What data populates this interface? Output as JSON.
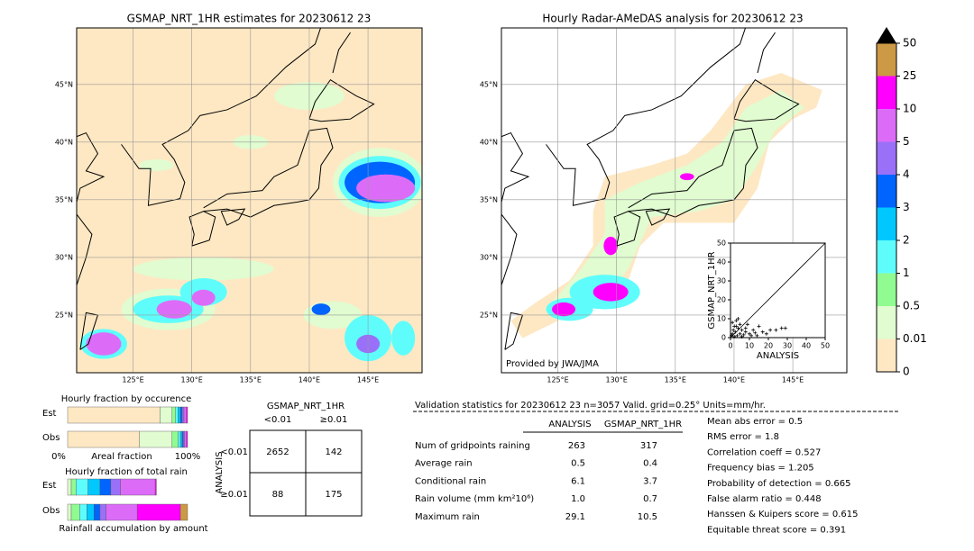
{
  "left_map": {
    "title": "GSMAP_NRT_1HR estimates for 20230612 23",
    "lat_ticks": [
      {
        "value": 45,
        "label": "45°N"
      },
      {
        "value": 40,
        "label": "40°N"
      },
      {
        "value": 35,
        "label": "35°N"
      },
      {
        "value": 30,
        "label": "30°N"
      },
      {
        "value": 25,
        "label": "25°N"
      }
    ],
    "lon_ticks": [
      {
        "value": 125,
        "label": "125°E"
      },
      {
        "value": 130,
        "label": "130°E"
      },
      {
        "value": 135,
        "label": "135°E"
      },
      {
        "value": 140,
        "label": "140°E"
      },
      {
        "value": 145,
        "label": "145°E"
      }
    ]
  },
  "right_map": {
    "title": "Hourly Radar-AMeDAS analysis for 20230612 23",
    "credit": "Provided by JWA/JMA",
    "lat_ticks": [
      {
        "value": 45,
        "label": "45°N"
      },
      {
        "value": 40,
        "label": "40°N"
      },
      {
        "value": 35,
        "label": "35°N"
      },
      {
        "value": 30,
        "label": "30°N"
      },
      {
        "value": 25,
        "label": "25°N"
      }
    ],
    "lon_ticks": [
      {
        "value": 125,
        "label": "125°E"
      },
      {
        "value": 130,
        "label": "130°E"
      },
      {
        "value": 135,
        "label": "135°E"
      },
      {
        "value": 140,
        "label": "140°E"
      },
      {
        "value": 145,
        "label": "145°E"
      }
    ]
  },
  "colorbar": {
    "ticks": [
      "0",
      "0.01",
      "0.5",
      "1",
      "2",
      "3",
      "4",
      "5",
      "10",
      "25",
      "50"
    ],
    "colors": [
      "#fee8c3",
      "#e0fcd0",
      "#90fb90",
      "#5efdfc",
      "#00c8fe",
      "#0064ff",
      "#9a70f8",
      "#dc6cf8",
      "#ff00ff",
      "#cc9944"
    ],
    "extend_color": "#000000"
  },
  "chart_data": [
    {
      "type": "scatter",
      "xlabel": "ANALYSIS",
      "ylabel": "GSMAP_NRT_1HR",
      "xlim": [
        0,
        50
      ],
      "ylim": [
        0,
        50
      ],
      "xticks": [
        0,
        10,
        20,
        30,
        40,
        50
      ],
      "yticks": [
        0,
        10,
        20,
        30,
        40,
        50
      ],
      "x": [
        0.5,
        1,
        1.5,
        2,
        2.5,
        3,
        3.5,
        4,
        5,
        6,
        7,
        8,
        9,
        10,
        11,
        12,
        13,
        14,
        15,
        17,
        19,
        21,
        24,
        27,
        29,
        1,
        2,
        3,
        5,
        6,
        8,
        4
      ],
      "y": [
        1,
        2,
        4,
        0.5,
        3,
        6,
        1,
        5,
        2,
        4,
        1.5,
        3,
        7,
        2,
        1,
        4,
        2.5,
        1,
        6,
        3,
        2,
        4,
        4,
        5,
        5,
        8,
        6,
        9,
        7,
        0.5,
        5,
        10
      ]
    },
    {
      "type": "stacked_bar",
      "title": "Hourly fraction by occurence",
      "categories": [
        "Est",
        "Obs"
      ],
      "xlabels": [
        "0%",
        "Areal fraction",
        "100%"
      ],
      "xlim": [
        0,
        100
      ],
      "series": [
        {
          "color": "#fee8c3",
          "values": [
            77,
            60
          ]
        },
        {
          "color": "#e0fcd0",
          "values": [
            10,
            27
          ]
        },
        {
          "color": "#90fb90",
          "values": [
            3,
            5
          ]
        },
        {
          "color": "#5efdfc",
          "values": [
            2,
            2
          ]
        },
        {
          "color": "#00c8fe",
          "values": [
            2,
            1.5
          ]
        },
        {
          "color": "#0064ff",
          "values": [
            1.5,
            1
          ]
        },
        {
          "color": "#9a70f8",
          "values": [
            1.5,
            1
          ]
        },
        {
          "color": "#dc6cf8",
          "values": [
            2,
            1.5
          ]
        },
        {
          "color": "#ff00ff",
          "values": [
            1,
            1
          ]
        }
      ]
    },
    {
      "type": "stacked_bar",
      "title": "Hourly fraction of total rain",
      "categories": [
        "Est",
        "Obs"
      ],
      "xlabels": [
        "Rainfall accumulation by amount"
      ],
      "xlim": [
        0,
        100
      ],
      "series": [
        {
          "color": "#e0fcd0",
          "values": [
            3,
            3
          ]
        },
        {
          "color": "#90fb90",
          "values": [
            4,
            7
          ]
        },
        {
          "color": "#5efdfc",
          "values": [
            10,
            6
          ]
        },
        {
          "color": "#00c8fe",
          "values": [
            10,
            6
          ]
        },
        {
          "color": "#0064ff",
          "values": [
            9,
            5
          ]
        },
        {
          "color": "#9a70f8",
          "values": [
            8,
            5
          ]
        },
        {
          "color": "#dc6cf8",
          "values": [
            29,
            26
          ]
        },
        {
          "color": "#ff00ff",
          "values": [
            1,
            36
          ]
        },
        {
          "color": "#cc9944",
          "values": [
            0,
            6
          ]
        }
      ]
    }
  ],
  "contingency": {
    "title": "GSMAP_NRT_1HR",
    "columns": [
      "<0.01",
      "≥0.01"
    ],
    "row_axis": "ANALYSIS",
    "rows": [
      "<0.01",
      "≥0.01"
    ],
    "cells": [
      [
        2652,
        142
      ],
      [
        88,
        175
      ]
    ]
  },
  "validation": {
    "header": "Validation statistics for 20230612 23  n=3057 Valid. grid=0.25° Units=mm/hr.",
    "columns": [
      "ANALYSIS",
      "GSMAP_NRT_1HR"
    ],
    "rows": [
      [
        "Num of gridpoints raining",
        "263",
        "317"
      ],
      [
        "Average rain",
        "0.5",
        "0.4"
      ],
      [
        "Conditional rain",
        "6.1",
        "3.7"
      ],
      [
        "Rain volume (mm km²10⁶)",
        "1.0",
        "0.7"
      ],
      [
        "Maximum rain",
        "29.1",
        "10.5"
      ]
    ],
    "scores": [
      "Mean abs error =    0.5",
      "RMS error =    1.8",
      "Correlation coeff =  0.527",
      "Frequency bias =  1.205",
      "Probability of detection =  0.665",
      "False alarm ratio =  0.448",
      "Hanssen & Kuipers score =  0.615",
      "Equitable threat score =  0.391"
    ]
  }
}
